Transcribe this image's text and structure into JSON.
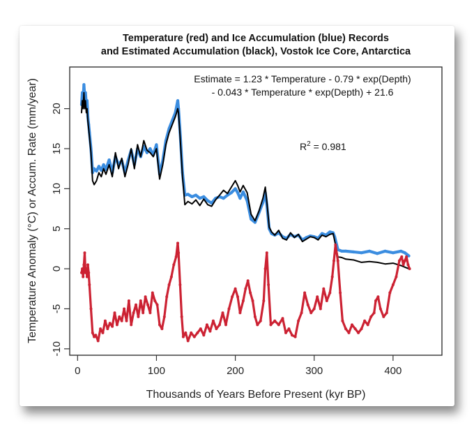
{
  "chart_data": {
    "type": "line",
    "title": [
      "Temperature (red) and Ice Accumulation (blue) Records",
      "and Estimated Accumulation (black), Vostok Ice Core, Antarctica"
    ],
    "xlabel": "Thousands of Years Before Present (kyr BP)",
    "ylabel": "Temperature Anomaly (°C) or Accum. Rate (mm/year)",
    "xlim": [
      -10,
      462
    ],
    "ylim": [
      -10.8,
      25.2
    ],
    "xticks": [
      0,
      100,
      200,
      300,
      400
    ],
    "yticks": [
      -10,
      -5,
      0,
      5,
      10,
      15,
      20
    ],
    "grid": false,
    "annotations": {
      "equation_line1": "Estimate = 1.23 * Temperature - 0.79 * exp(Depth)",
      "equation_line2": "- 0.043 * Temperature * exp(Depth) + 21.6",
      "r2_label": "R",
      "r2_sup": "2",
      "r2_value": " = 0.981"
    },
    "series": [
      {
        "name": "Ice Accumulation",
        "color": "#3b8de0",
        "x": [
          5,
          6,
          7,
          8,
          9,
          10,
          11,
          12,
          13,
          14,
          15,
          17,
          19,
          21,
          24,
          27,
          30,
          33,
          36,
          40,
          44,
          48,
          52,
          56,
          60,
          64,
          68,
          72,
          76,
          80,
          84,
          88,
          92,
          96,
          100,
          104,
          108,
          112,
          116,
          120,
          124,
          127,
          128,
          130,
          133,
          136,
          140,
          145,
          150,
          155,
          160,
          165,
          170,
          175,
          180,
          185,
          190,
          195,
          200,
          203,
          206,
          210,
          215,
          220,
          225,
          230,
          235,
          238,
          240,
          243,
          246,
          250,
          255,
          260,
          265,
          270,
          275,
          280,
          285,
          290,
          295,
          300,
          305,
          310,
          315,
          320,
          324,
          326,
          330,
          335,
          340,
          350,
          360,
          370,
          380,
          390,
          400,
          410,
          415,
          420
        ],
        "values": [
          20.5,
          22,
          21,
          23,
          21.5,
          22,
          20.5,
          21,
          19,
          18,
          17,
          15,
          12,
          12.5,
          12.2,
          12.8,
          12.3,
          13,
          12.4,
          13.6,
          12,
          14,
          13,
          13.5,
          12,
          13.5,
          14.8,
          13,
          15,
          14,
          15.3,
          14.5,
          15,
          14.2,
          15.5,
          11.8,
          13.5,
          16,
          17.5,
          18.5,
          19.5,
          21,
          20,
          17,
          12,
          9.2,
          9.3,
          9,
          9.2,
          8.8,
          9,
          8.5,
          8.2,
          8.8,
          9,
          8.8,
          9.2,
          9.5,
          10,
          9.5,
          8.8,
          9.6,
          8.5,
          6.2,
          5.8,
          7,
          8.3,
          9.5,
          8,
          5,
          4.4,
          4.2,
          4.5,
          4,
          3.8,
          4.3,
          4,
          4.2,
          3.6,
          3.9,
          4.1,
          4,
          3.8,
          4.4,
          4.2,
          4.6,
          4.5,
          4,
          2.4,
          2.2,
          2.2,
          2.1,
          2,
          2.2,
          1.9,
          2.2,
          2.0,
          2.2,
          2.0,
          1.6
        ],
        "type": "line"
      },
      {
        "name": "Estimated Accumulation",
        "color": "#000000",
        "x": [
          5,
          6,
          7,
          8,
          9,
          10,
          11,
          12,
          13,
          14,
          15,
          17,
          19,
          21,
          24,
          27,
          30,
          33,
          36,
          40,
          44,
          48,
          52,
          56,
          60,
          64,
          68,
          72,
          76,
          80,
          84,
          88,
          92,
          96,
          100,
          104,
          108,
          112,
          116,
          120,
          124,
          127,
          128,
          130,
          133,
          136,
          140,
          145,
          150,
          155,
          160,
          165,
          170,
          175,
          180,
          185,
          190,
          195,
          200,
          203,
          206,
          210,
          215,
          220,
          225,
          230,
          235,
          238,
          240,
          243,
          246,
          250,
          255,
          260,
          265,
          270,
          275,
          280,
          285,
          290,
          295,
          300,
          305,
          310,
          315,
          320,
          324,
          326,
          330,
          335,
          340,
          350,
          360,
          370,
          380,
          390,
          400,
          410,
          415,
          420
        ],
        "values": [
          19.5,
          21,
          20,
          22,
          20,
          21,
          19.5,
          20,
          18.5,
          17.5,
          16.5,
          14.5,
          11,
          10.5,
          11,
          12,
          11.5,
          12.5,
          11.8,
          13,
          11.5,
          14.5,
          12.5,
          13.8,
          11.5,
          13,
          15,
          12.5,
          15.5,
          14,
          16,
          14.8,
          14.5,
          14,
          15,
          11.2,
          13,
          15.5,
          17,
          18,
          19,
          20,
          19.5,
          16.5,
          11.5,
          8,
          8.4,
          8.1,
          8.6,
          7.9,
          8.7,
          8,
          7.8,
          8.6,
          9.2,
          9.8,
          9.4,
          10.2,
          11,
          10.4,
          9.6,
          10.4,
          9.5,
          6.8,
          6,
          7.2,
          8.8,
          10.2,
          8.4,
          5.2,
          4.6,
          4.2,
          4.8,
          3.8,
          3.6,
          4.5,
          3.9,
          4.3,
          3.4,
          3.7,
          4,
          3.9,
          3.6,
          4.2,
          4,
          4.3,
          4.4,
          3.5,
          1.5,
          1.4,
          1.2,
          1.1,
          0.8,
          0.9,
          0.8,
          0.6,
          0.7,
          0.4,
          0.2,
          0.0
        ],
        "type": "line"
      },
      {
        "name": "Temperature",
        "color": "#cc2233",
        "x": [
          5,
          6,
          7,
          8,
          9,
          10,
          11,
          12,
          13,
          14,
          15,
          17,
          19,
          21,
          23,
          26,
          29,
          32,
          35,
          38,
          41,
          44,
          47,
          50,
          53,
          56,
          59,
          62,
          65,
          68,
          71,
          74,
          77,
          80,
          83,
          86,
          89,
          92,
          95,
          98,
          101,
          104,
          107,
          110,
          113,
          116,
          119,
          122,
          125,
          127,
          128,
          130,
          132,
          134,
          137,
          140,
          144,
          148,
          152,
          156,
          160,
          164,
          168,
          172,
          176,
          180,
          184,
          188,
          192,
          196,
          200,
          203,
          206,
          210,
          213,
          216,
          219,
          222,
          225,
          228,
          232,
          236,
          238,
          240,
          242,
          245,
          250,
          255,
          260,
          264,
          268,
          272,
          276,
          280,
          284,
          288,
          292,
          296,
          300,
          304,
          308,
          312,
          316,
          320,
          323,
          325,
          327,
          330,
          333,
          336,
          340,
          344,
          348,
          352,
          356,
          360,
          364,
          368,
          372,
          376,
          378,
          381,
          384,
          388,
          392,
          396,
          400,
          404,
          408,
          411,
          413,
          415,
          417,
          419,
          421
        ],
        "values": [
          -0.5,
          0,
          -1,
          0.5,
          2,
          -0.5,
          0,
          -1,
          0.5,
          -0.5,
          -2,
          -5,
          -8,
          -8.5,
          -8.3,
          -9,
          -7.5,
          -8,
          -6.5,
          -7.5,
          -6.8,
          -7.2,
          -5.5,
          -7,
          -6,
          -6.5,
          -5,
          -6.5,
          -4,
          -7,
          -5.5,
          -4.5,
          -6,
          -4,
          -5.5,
          -3.5,
          -4.5,
          -5.5,
          -3,
          -4,
          -4.5,
          -7,
          -7.5,
          -6,
          -3.5,
          -2,
          -1,
          0.5,
          1.5,
          3.2,
          2,
          -2,
          -6,
          -8.5,
          -8,
          -9,
          -8,
          -8.5,
          -8,
          -7.5,
          -8.3,
          -7,
          -7.8,
          -6.5,
          -7.5,
          -7,
          -5.5,
          -7,
          -5,
          -3.5,
          -2.5,
          -3.5,
          -5.5,
          -4,
          -2.5,
          -1.5,
          -3,
          -4,
          -6,
          -7,
          -6.5,
          -4,
          0,
          2,
          -2,
          -7,
          -6.5,
          -7,
          -6.2,
          -8,
          -7.5,
          -8.3,
          -8.5,
          -6.5,
          -5.5,
          -3,
          -4.5,
          -5.5,
          -5,
          -3.5,
          -5,
          -2.5,
          -4,
          -3,
          -1,
          1,
          3,
          1,
          -3,
          -6.5,
          -7.5,
          -8,
          -7,
          -7.5,
          -8,
          -7.5,
          -6.5,
          -7,
          -6,
          -5.5,
          -4,
          -3.5,
          -5,
          -6,
          -5.5,
          -3,
          -2,
          -1,
          1,
          1.5,
          0.5,
          1,
          1.5,
          0.5,
          0
        ],
        "type": "line"
      }
    ]
  }
}
